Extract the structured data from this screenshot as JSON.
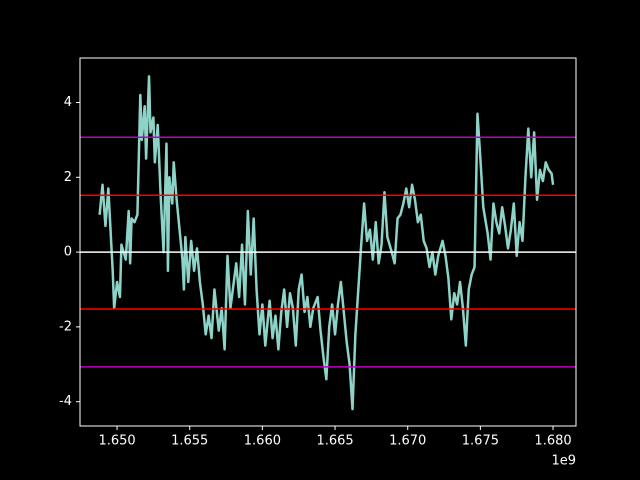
{
  "chart_data": {
    "type": "line",
    "color": "#8dd3c7",
    "x": [
      1648800000,
      1649000000,
      1649200000,
      1649400000,
      1649700000,
      1649800000,
      1650000000,
      1650200000,
      1650300000,
      1650600000,
      1650800000,
      1650900000,
      1651000000,
      1651200000,
      1651400000,
      1651600000,
      1651700000,
      1651900000,
      1652000000,
      1652200000,
      1652300000,
      1652500000,
      1652600000,
      1652800000,
      1653000000,
      1653200000,
      1653400000,
      1653500000,
      1653600000,
      1653800000,
      1653900000,
      1654100000,
      1654300000,
      1654500000,
      1654600000,
      1654700000,
      1654900000,
      1655100000,
      1655300000,
      1655500000,
      1655700000,
      1655900000,
      1656100000,
      1656300000,
      1656500000,
      1656700000,
      1657000000,
      1657200000,
      1657400000,
      1657600000,
      1657800000,
      1658000000,
      1658200000,
      1658400000,
      1658600000,
      1658800000,
      1659000000,
      1659200000,
      1659400000,
      1659600000,
      1659800000,
      1660000000,
      1660200000,
      1660500000,
      1660700000,
      1660900000,
      1661100000,
      1661300000,
      1661500000,
      1661700000,
      1661900000,
      1662100000,
      1662300000,
      1662500000,
      1662700000,
      1662900000,
      1663100000,
      1663300000,
      1663500000,
      1663800000,
      1664000000,
      1664200000,
      1664400000,
      1664600000,
      1664800000,
      1665000000,
      1665200000,
      1665400000,
      1665600000,
      1665800000,
      1666000000,
      1666200000,
      1666400000,
      1666600000,
      1666800000,
      1667000000,
      1667200000,
      1667400000,
      1667600000,
      1667800000,
      1668000000,
      1668200000,
      1668400000,
      1668600000,
      1668900000,
      1669100000,
      1669300000,
      1669500000,
      1669700000,
      1669900000,
      1670100000,
      1670300000,
      1670500000,
      1670700000,
      1670900000,
      1671100000,
      1671300000,
      1671500000,
      1671700000,
      1671900000,
      1672100000,
      1672400000,
      1672600000,
      1672800000,
      1673000000,
      1673200000,
      1673400000,
      1673600000,
      1673800000,
      1674000000,
      1674200000,
      1674400000,
      1674600000,
      1674800000,
      1675000000,
      1675200000,
      1675500000,
      1675700000,
      1675900000,
      1676100000,
      1676300000,
      1676500000,
      1676700000,
      1676900000,
      1677100000,
      1677300000,
      1677500000,
      1677700000,
      1677900000,
      1678100000,
      1678300000,
      1678500000,
      1678700000,
      1678900000,
      1679100000,
      1679300000,
      1679500000,
      1679700000,
      1679900000,
      1680000000
    ],
    "values": [
      1.0,
      1.8,
      0.7,
      1.7,
      -0.5,
      -1.5,
      -0.8,
      -1.2,
      0.2,
      -0.2,
      1.1,
      -0.3,
      0.9,
      0.8,
      1.0,
      4.2,
      3.0,
      3.9,
      2.5,
      4.7,
      3.2,
      3.6,
      2.4,
      3.4,
      1.5,
      0.0,
      2.9,
      -0.5,
      2.0,
      1.3,
      2.4,
      1.4,
      0.6,
      -0.2,
      -1.0,
      0.4,
      -0.8,
      0.3,
      -0.5,
      0.1,
      -0.8,
      -1.4,
      -2.2,
      -1.7,
      -2.3,
      -1.0,
      -2.1,
      -1.5,
      -2.6,
      -0.1,
      -1.5,
      -0.9,
      -0.3,
      -1.2,
      0.2,
      -1.4,
      1.1,
      -0.6,
      0.9,
      -1.0,
      -2.2,
      -1.4,
      -2.5,
      -1.3,
      -2.3,
      -1.7,
      -2.6,
      -1.6,
      -1.0,
      -2.0,
      -1.1,
      -1.5,
      -2.5,
      -1.0,
      -0.6,
      -1.6,
      -1.2,
      -2.0,
      -1.5,
      -1.2,
      -2.1,
      -2.8,
      -3.4,
      -2.0,
      -1.4,
      -2.2,
      -1.4,
      -0.8,
      -1.6,
      -2.4,
      -3.0,
      -4.2,
      -2.2,
      -1.0,
      0.2,
      1.3,
      0.3,
      0.6,
      -0.2,
      0.8,
      -0.3,
      0.2,
      1.6,
      0.4,
      0.0,
      -0.3,
      0.9,
      1.0,
      1.3,
      1.7,
      1.2,
      1.8,
      1.4,
      0.8,
      1.0,
      0.3,
      0.1,
      -0.4,
      0.0,
      -0.6,
      -0.1,
      0.3,
      -0.1,
      -0.7,
      -1.8,
      -1.1,
      -1.4,
      -0.8,
      -1.5,
      -2.5,
      -1.0,
      -0.6,
      -0.4,
      3.7,
      2.5,
      1.2,
      0.5,
      -0.2,
      1.3,
      0.8,
      0.5,
      1.2,
      0.7,
      0.1,
      0.6,
      1.3,
      -0.1,
      0.8,
      0.3,
      2.0,
      3.3,
      2.0,
      3.2,
      1.4,
      2.2,
      1.9,
      2.4,
      2.2,
      2.1,
      1.8
    ],
    "hlines": [
      {
        "value": 0,
        "color": "#ffffff"
      },
      {
        "value": 1.52,
        "color": "#ff0000"
      },
      {
        "value": -1.52,
        "color": "#ff0000"
      },
      {
        "value": 3.07,
        "color": "#bf00bf"
      },
      {
        "value": -3.07,
        "color": "#bf00bf"
      }
    ],
    "xlim": [
      1647450000,
      1681580000
    ],
    "ylim": [
      -4.65,
      5.19
    ],
    "xticks": [
      {
        "value": 1650000000,
        "label": "1.650"
      },
      {
        "value": 1655000000,
        "label": "1.655"
      },
      {
        "value": 1660000000,
        "label": "1.660"
      },
      {
        "value": 1665000000,
        "label": "1.665"
      },
      {
        "value": 1670000000,
        "label": "1.670"
      },
      {
        "value": 1675000000,
        "label": "1.675"
      },
      {
        "value": 1680000000,
        "label": "1.680"
      }
    ],
    "yticks": [
      -4,
      -2,
      0,
      2,
      4
    ],
    "x_offset_label": "1e9"
  }
}
